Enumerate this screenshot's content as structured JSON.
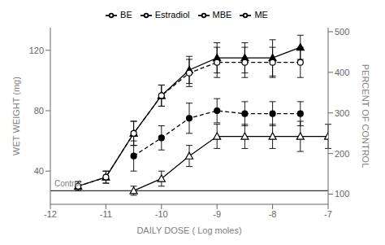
{
  "chart_data": {
    "type": "line",
    "xlabel": "DAILY DOSE ( Log moles)",
    "ylabel": "WET WEIGHT (mg)",
    "y2label": "PERCENT OF CONTROL",
    "xlim": [
      -12,
      -7
    ],
    "xticks": [
      -12,
      -11,
      -10,
      -9,
      -8,
      -7
    ],
    "ylim": [
      18,
      135
    ],
    "yticks": [
      40,
      80,
      120
    ],
    "y2lim": [
      75,
      510
    ],
    "y2ticks": [
      100,
      200,
      300,
      400,
      500
    ],
    "grid": false,
    "legend": "top",
    "reference_lines": [
      {
        "y": 27,
        "label": "Control",
        "color": "#000000"
      }
    ],
    "series": [
      {
        "name": "ME",
        "color": "#000000",
        "marker": "triangle",
        "line_style": "solid",
        "x": [
          -11.5,
          -11,
          -10.5,
          -10,
          -9.5,
          -9,
          -8.5,
          -8,
          -7.5
        ],
        "values": [
          30,
          36,
          65,
          90,
          107,
          115,
          115,
          115,
          122
        ],
        "errors": [
          3,
          4,
          8,
          7,
          9,
          10,
          10,
          12,
          8
        ]
      },
      {
        "name": "MBE",
        "color": "#000000",
        "marker": "circle_open",
        "line_style": "dashed",
        "x": [
          -11.5,
          -11,
          -10.5,
          -10,
          -9.5,
          -9,
          -8.5,
          -8,
          -7.5
        ],
        "values": [
          30,
          36,
          65,
          90,
          105,
          112,
          112,
          112,
          112
        ],
        "errors": [
          3,
          4,
          8,
          7,
          9,
          10,
          10,
          10,
          10
        ]
      },
      {
        "name": "Estradiol",
        "color": "#000000",
        "marker": "circle",
        "line_style": "dashed",
        "x": [
          -10.5,
          -10,
          -9.5,
          -9,
          -8.5,
          -8,
          -7.5
        ],
        "values": [
          50,
          62,
          75,
          80,
          78,
          78,
          78
        ],
        "errors": [
          10,
          8,
          10,
          8,
          8,
          8,
          8
        ]
      },
      {
        "name": "BE",
        "color": "#000000",
        "marker": "triangle_open",
        "line_style": "solid",
        "x": [
          -10.5,
          -10,
          -9.5,
          -9,
          -8.5,
          -8,
          -7.5,
          -7
        ],
        "values": [
          27,
          35,
          50,
          63,
          63,
          63,
          63,
          63
        ],
        "errors": [
          3,
          5,
          7,
          8,
          8,
          8,
          10,
          8
        ]
      }
    ]
  }
}
